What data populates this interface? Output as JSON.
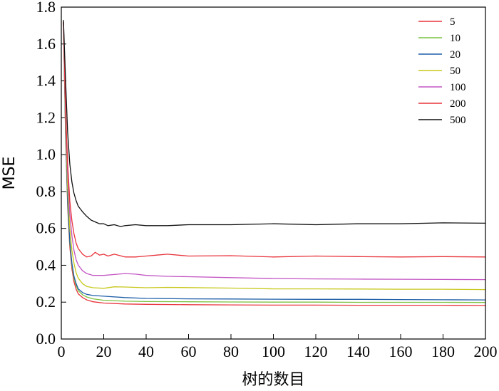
{
  "chart_data": {
    "type": "line",
    "title": "",
    "xlabel": "树的数目",
    "ylabel": "MSE",
    "xlim": [
      0,
      200
    ],
    "ylim": [
      0,
      1.8
    ],
    "xticks": [
      0,
      20,
      40,
      60,
      80,
      100,
      120,
      140,
      160,
      180,
      200
    ],
    "yticks": [
      "0.0",
      "0.2",
      "0.4",
      "0.6",
      "0.8",
      "1.0",
      "1.2",
      "1.4",
      "1.6",
      "1.8"
    ],
    "grid": false,
    "legend_position": "top-right",
    "series": [
      {
        "name": "5",
        "color": "#e8343c",
        "x": [
          1,
          2,
          3,
          4,
          5,
          6,
          7,
          8,
          10,
          12,
          15,
          20,
          30,
          40,
          60,
          80,
          100,
          120,
          140,
          160,
          180,
          200
        ],
        "y": [
          1.72,
          1.1,
          0.72,
          0.5,
          0.38,
          0.31,
          0.27,
          0.245,
          0.225,
          0.212,
          0.202,
          0.195,
          0.19,
          0.188,
          0.186,
          0.185,
          0.184,
          0.184,
          0.183,
          0.183,
          0.183,
          0.182
        ]
      },
      {
        "name": "10",
        "color": "#7cc242",
        "x": [
          1,
          2,
          3,
          4,
          5,
          6,
          7,
          8,
          10,
          12,
          15,
          20,
          30,
          40,
          60,
          80,
          100,
          120,
          140,
          160,
          180,
          200
        ],
        "y": [
          1.72,
          1.12,
          0.74,
          0.52,
          0.4,
          0.33,
          0.29,
          0.262,
          0.24,
          0.228,
          0.218,
          0.21,
          0.205,
          0.203,
          0.202,
          0.201,
          0.2,
          0.2,
          0.199,
          0.199,
          0.199,
          0.198
        ]
      },
      {
        "name": "20",
        "color": "#1f5fa8",
        "x": [
          1,
          2,
          3,
          4,
          5,
          6,
          7,
          8,
          10,
          12,
          15,
          20,
          30,
          40,
          60,
          80,
          100,
          120,
          140,
          160,
          180,
          200
        ],
        "y": [
          1.72,
          1.13,
          0.75,
          0.53,
          0.41,
          0.34,
          0.3,
          0.272,
          0.252,
          0.242,
          0.236,
          0.232,
          0.225,
          0.22,
          0.218,
          0.217,
          0.216,
          0.215,
          0.215,
          0.214,
          0.213,
          0.212
        ]
      },
      {
        "name": "50",
        "color": "#c8c81e",
        "x": [
          1,
          2,
          3,
          4,
          5,
          6,
          7,
          8,
          10,
          12,
          15,
          20,
          25,
          30,
          40,
          50,
          60,
          80,
          100,
          120,
          140,
          160,
          180,
          200
        ],
        "y": [
          1.72,
          1.18,
          0.82,
          0.6,
          0.48,
          0.41,
          0.36,
          0.33,
          0.3,
          0.285,
          0.278,
          0.275,
          0.283,
          0.282,
          0.278,
          0.28,
          0.279,
          0.276,
          0.272,
          0.272,
          0.271,
          0.27,
          0.27,
          0.268
        ]
      },
      {
        "name": "100",
        "color": "#c355c3",
        "x": [
          1,
          2,
          3,
          4,
          5,
          6,
          7,
          8,
          10,
          12,
          15,
          20,
          25,
          30,
          35,
          40,
          50,
          60,
          80,
          100,
          120,
          140,
          160,
          180,
          200
        ],
        "y": [
          1.72,
          1.22,
          0.9,
          0.68,
          0.56,
          0.48,
          0.43,
          0.4,
          0.37,
          0.355,
          0.345,
          0.345,
          0.35,
          0.355,
          0.352,
          0.345,
          0.34,
          0.338,
          0.333,
          0.328,
          0.326,
          0.325,
          0.324,
          0.323,
          0.322
        ]
      },
      {
        "name": "200",
        "color": "#e8343c",
        "x": [
          1,
          2,
          3,
          4,
          5,
          6,
          7,
          8,
          10,
          12,
          14,
          16,
          18,
          20,
          22,
          25,
          30,
          35,
          40,
          45,
          50,
          60,
          80,
          100,
          120,
          140,
          160,
          180,
          200
        ],
        "y": [
          1.72,
          1.25,
          0.95,
          0.75,
          0.64,
          0.57,
          0.52,
          0.49,
          0.46,
          0.445,
          0.45,
          0.47,
          0.455,
          0.46,
          0.45,
          0.46,
          0.445,
          0.445,
          0.45,
          0.455,
          0.46,
          0.45,
          0.452,
          0.445,
          0.45,
          0.447,
          0.445,
          0.447,
          0.445
        ]
      },
      {
        "name": "500",
        "color": "#111111",
        "x": [
          1,
          2,
          3,
          4,
          5,
          6,
          7,
          8,
          10,
          12,
          14,
          16,
          18,
          20,
          22,
          25,
          28,
          30,
          35,
          40,
          50,
          60,
          80,
          100,
          120,
          140,
          160,
          180,
          200
        ],
        "y": [
          1.73,
          1.4,
          1.12,
          0.95,
          0.85,
          0.79,
          0.75,
          0.72,
          0.69,
          0.665,
          0.645,
          0.635,
          0.625,
          0.625,
          0.615,
          0.62,
          0.61,
          0.615,
          0.62,
          0.615,
          0.615,
          0.62,
          0.62,
          0.625,
          0.62,
          0.625,
          0.625,
          0.63,
          0.628
        ]
      }
    ]
  }
}
